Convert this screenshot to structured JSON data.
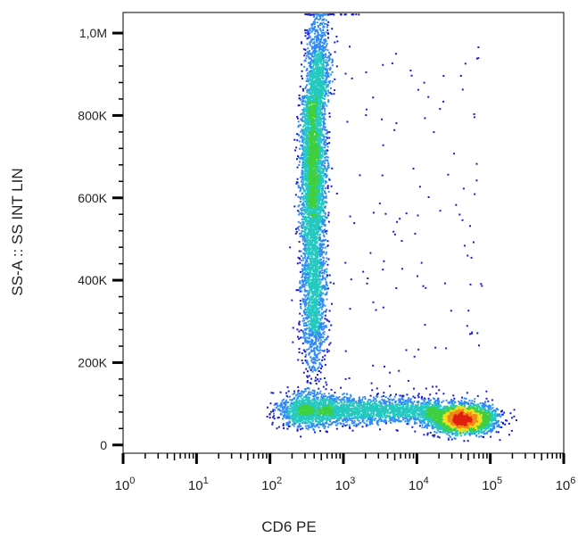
{
  "chart_data": {
    "type": "scatter",
    "subtype": "flow-cytometry density dot plot",
    "xlabel": "CD6 PE",
    "ylabel": "SS-A :: SS INT LIN",
    "x_scale": "log",
    "y_scale": "linear",
    "xlim": [
      1,
      1000000
    ],
    "ylim": [
      -20000,
      1050000
    ],
    "x_ticks": [
      {
        "base": "10",
        "exp": "0"
      },
      {
        "base": "10",
        "exp": "1"
      },
      {
        "base": "10",
        "exp": "2"
      },
      {
        "base": "10",
        "exp": "3"
      },
      {
        "base": "10",
        "exp": "4"
      },
      {
        "base": "10",
        "exp": "5"
      },
      {
        "base": "10",
        "exp": "6"
      }
    ],
    "y_ticks": [
      {
        "value": 0,
        "label": "0"
      },
      {
        "value": 200000,
        "label": "200K"
      },
      {
        "value": 400000,
        "label": "400K"
      },
      {
        "value": 600000,
        "label": "600K"
      },
      {
        "value": 800000,
        "label": "800K"
      },
      {
        "value": 1000000,
        "label": "1,0M"
      }
    ],
    "grid": false,
    "legend": "none",
    "colormap": [
      "#1a1ad0",
      "#2f8bf5",
      "#25c9c0",
      "#3fcf3f",
      "#f0e020",
      "#f08a18",
      "#e02010"
    ],
    "populations": [
      {
        "description": "CD6-negative / low population, high side scatter",
        "x_center": 400,
        "y_center": 650000,
        "x_spread_decades": 0.1,
        "y_range": [
          250000,
          1050000
        ]
      },
      {
        "description": "CD6-positive population, low side scatter",
        "x_center": 45000,
        "y_center": 65000,
        "x_spread_decades": 0.22,
        "y_range": [
          20000,
          110000
        ]
      },
      {
        "description": "bridging events, low side scatter",
        "x_range": [
          100,
          15000
        ],
        "y_center": 85000
      }
    ]
  }
}
